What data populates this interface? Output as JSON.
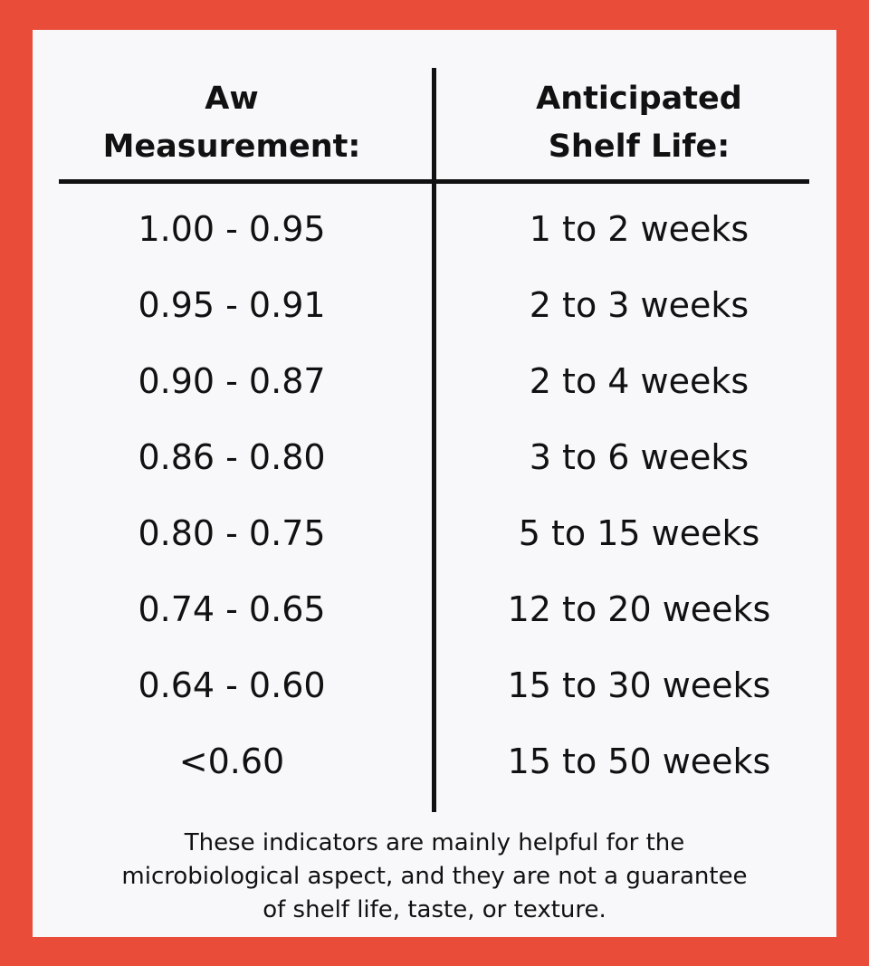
{
  "colors": {
    "border": "#e94c39",
    "card": "#f8f8fa",
    "text": "#111111"
  },
  "table": {
    "headers": {
      "aw_line1": "Aw",
      "aw_line2": "Measurement:",
      "life_line1": "Anticipated",
      "life_line2": "Shelf Life:"
    },
    "rows": [
      {
        "aw": "1.00 - 0.95",
        "life": "1 to 2 weeks"
      },
      {
        "aw": "0.95 - 0.91",
        "life": "2 to 3 weeks"
      },
      {
        "aw": "0.90 - 0.87",
        "life": "2 to 4 weeks"
      },
      {
        "aw": "0.86 - 0.80",
        "life": "3 to 6 weeks"
      },
      {
        "aw": "0.80 - 0.75",
        "life": "5 to 15 weeks"
      },
      {
        "aw": "0.74 - 0.65",
        "life": "12 to 20 weeks"
      },
      {
        "aw": "0.64 - 0.60",
        "life": "15 to 30 weeks"
      },
      {
        "aw": "<0.60",
        "life": "15 to 50 weeks"
      }
    ]
  },
  "footnote": {
    "line1": "These indicators are mainly helpful for the",
    "line2": "microbiological aspect, and they are not a guarantee",
    "line3": "of shelf life, taste, or texture."
  }
}
